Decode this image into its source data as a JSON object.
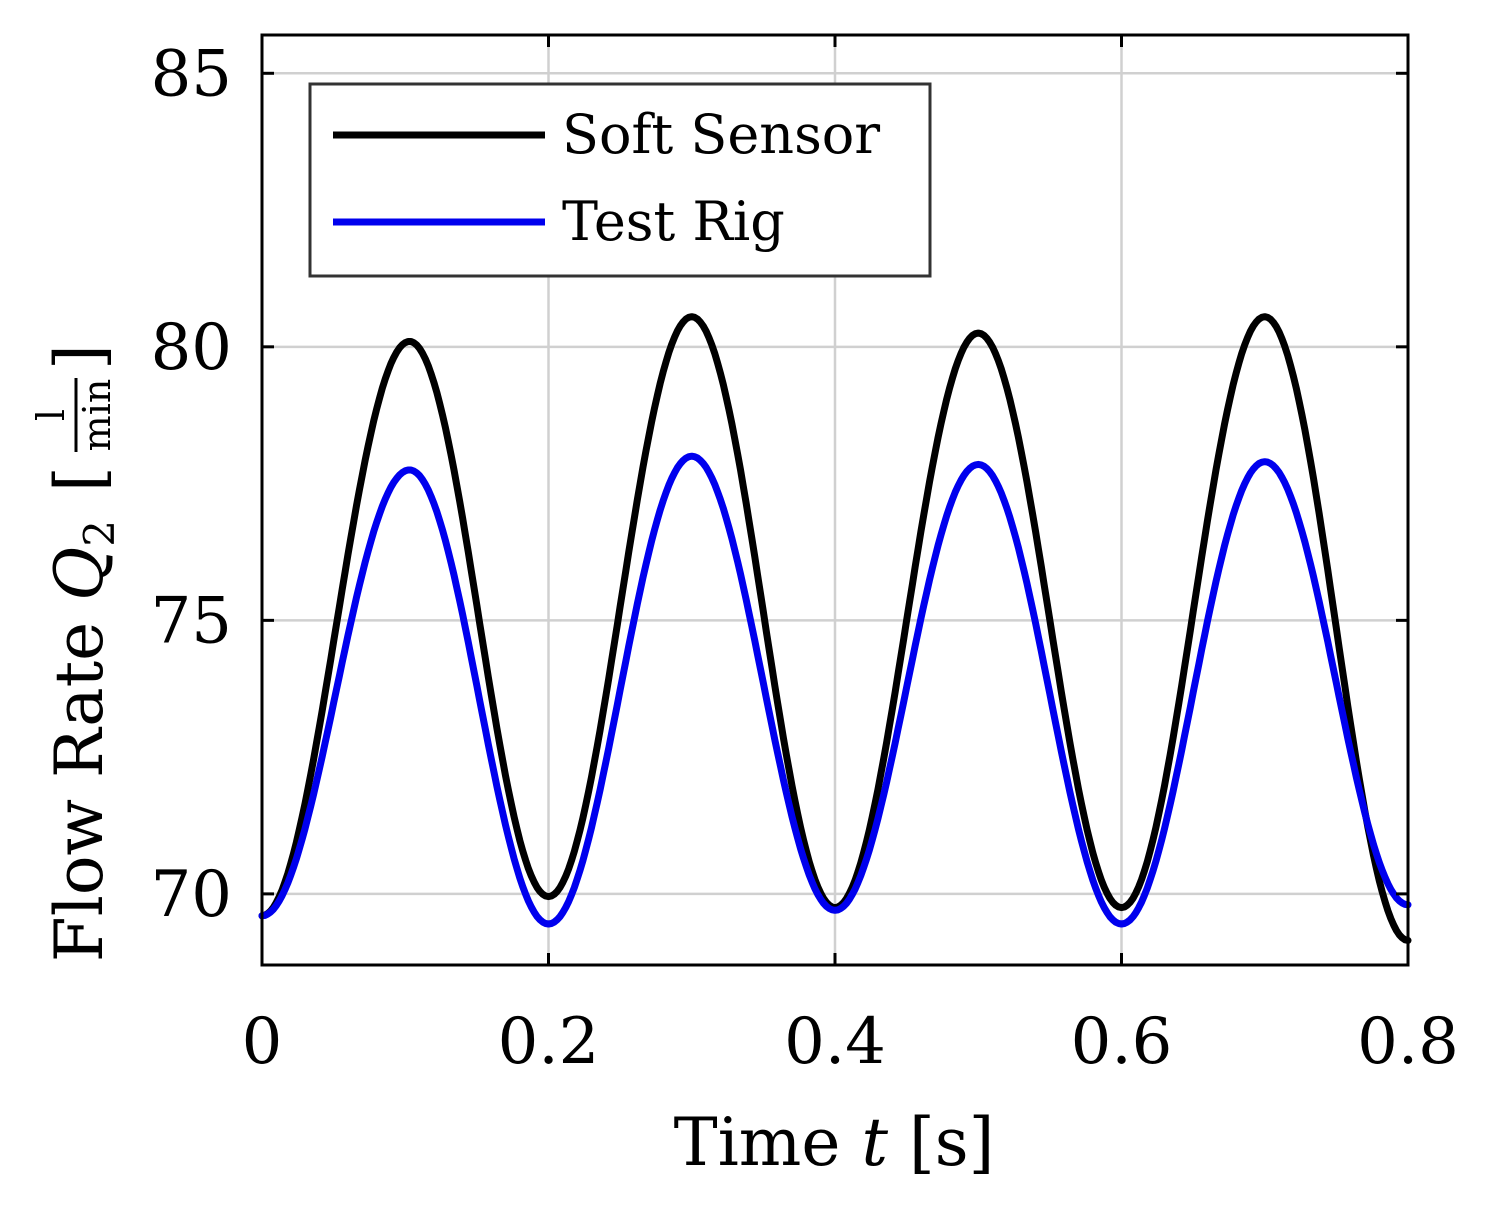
{
  "chart_data": {
    "type": "line",
    "xlabel": "Time t [s]",
    "ylabel": "Flow Rate Q2 [l/min]",
    "ylabel_parts": {
      "name": "Flow Rate ",
      "symbol": "Q",
      "subscript": "2",
      "unit_num": "l",
      "unit_den": "min"
    },
    "xlabel_parts": {
      "name": "Time ",
      "symbol": "t",
      "unit": "[s]"
    },
    "xlim": [
      0,
      0.8
    ],
    "ylim": [
      68.7,
      85.7
    ],
    "xticks": [
      0,
      0.2,
      0.4,
      0.6,
      0.8
    ],
    "xtick_labels": [
      "0",
      "0.2",
      "0.4",
      "0.6",
      "0.8"
    ],
    "yticks": [
      70,
      75,
      80,
      85
    ],
    "ytick_labels": [
      "70",
      "75",
      "80",
      "85"
    ],
    "grid": true,
    "legend_position": "top-left",
    "series": [
      {
        "name": "Soft Sensor",
        "color": "#000000",
        "keypoints": [
          [
            0.0,
            69.6
          ],
          [
            0.103,
            80.1
          ],
          [
            0.2,
            69.95
          ],
          [
            0.3,
            80.55
          ],
          [
            0.4,
            69.75
          ],
          [
            0.5,
            80.25
          ],
          [
            0.6,
            69.75
          ],
          [
            0.7,
            80.55
          ],
          [
            0.8,
            69.15
          ]
        ]
      },
      {
        "name": "Test Rig",
        "color": "#0000ee",
        "keypoints": [
          [
            0.0,
            69.6
          ],
          [
            0.103,
            77.75
          ],
          [
            0.2,
            69.45
          ],
          [
            0.3,
            78.0
          ],
          [
            0.4,
            69.7
          ],
          [
            0.5,
            77.85
          ],
          [
            0.6,
            69.45
          ],
          [
            0.7,
            77.9
          ],
          [
            0.8,
            69.8
          ]
        ]
      }
    ]
  }
}
